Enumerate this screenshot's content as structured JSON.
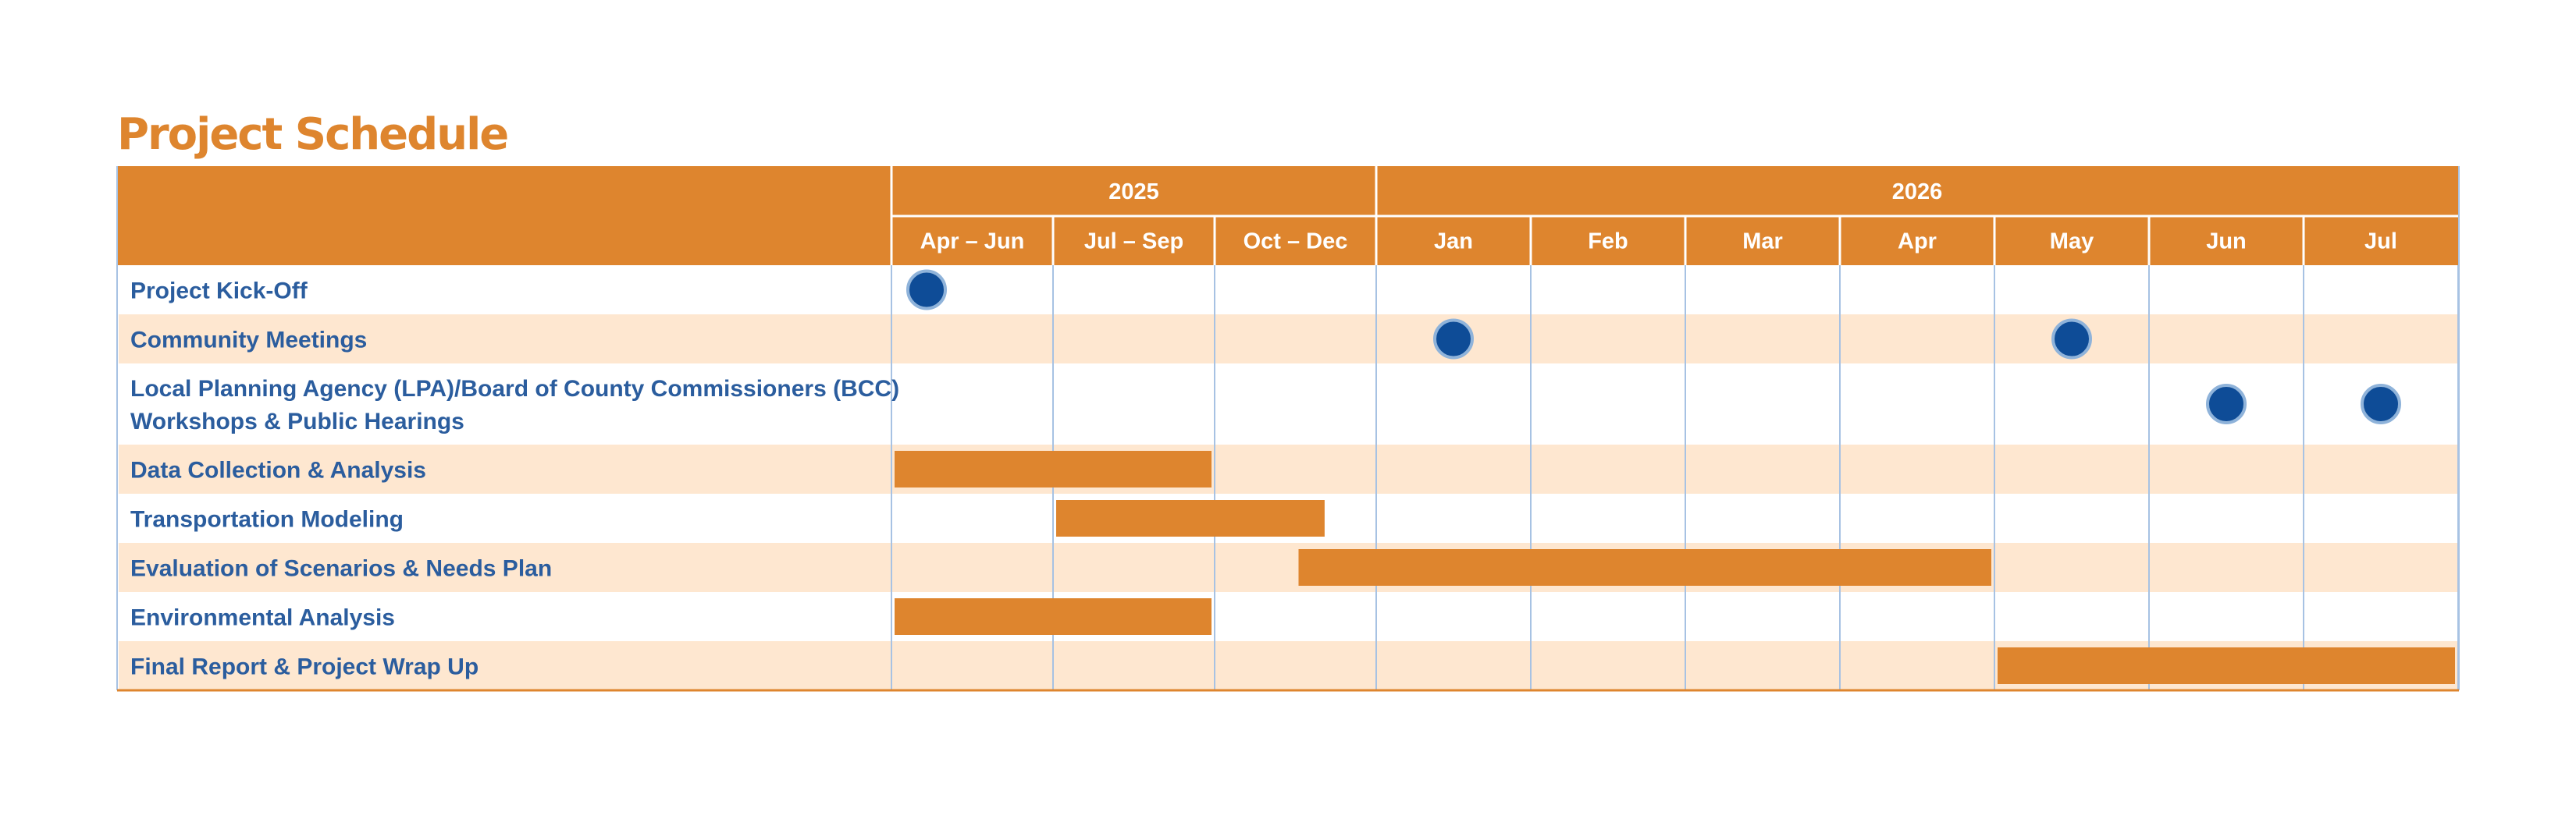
{
  "title": "Project Schedule",
  "chart_data": {
    "type": "table",
    "years": [
      {
        "label": "2025",
        "periods": [
          "Apr – Jun",
          "Jul – Sep",
          "Oct – Dec"
        ]
      },
      {
        "label": "2026",
        "periods": [
          "Jan",
          "Feb",
          "Mar",
          "Apr",
          "May",
          "Jun",
          "Jul"
        ]
      }
    ],
    "columns": [
      "Apr – Jun",
      "Jul – Sep",
      "Oct – Dec",
      "Jan",
      "Feb",
      "Mar",
      "Apr",
      "May",
      "Jun",
      "Jul"
    ],
    "tasks": [
      {
        "label": [
          "Project Kick-Off"
        ],
        "milestones": [
          "Apr – Jun"
        ]
      },
      {
        "label": [
          "Community Meetings"
        ],
        "milestones": [
          "Jan",
          "May"
        ]
      },
      {
        "label": [
          "Local Planning Agency (LPA)/Board of County Commissioners (BCC)",
          "Workshops & Public Hearings"
        ],
        "milestones": [
          "Jun",
          "Jul"
        ]
      },
      {
        "label": [
          "Data Collection & Analysis"
        ],
        "bars": [
          {
            "start": 0,
            "end": 2
          }
        ]
      },
      {
        "label": [
          "Transportation Modeling"
        ],
        "bars": [
          {
            "start": 1,
            "end": 2.7
          }
        ]
      },
      {
        "label": [
          "Evaluation of Scenarios & Needs Plan"
        ],
        "bars": [
          {
            "start": 2.5,
            "end": 7
          }
        ]
      },
      {
        "label": [
          "Environmental Analysis"
        ],
        "bars": [
          {
            "start": 0,
            "end": 2
          }
        ]
      },
      {
        "label": [
          "Final Report & Project Wrap Up"
        ],
        "bars": [
          {
            "start": 7,
            "end": 10
          }
        ]
      }
    ],
    "colors": {
      "header": "#DE852E",
      "bar": "#DE852E",
      "milestone": "#0E4C97",
      "milestone_stroke": "#8FB3DA",
      "band": "#FEE7D0",
      "grid": "#A7C2E3",
      "label": "#2B5D9E",
      "title": "#DE852E"
    }
  }
}
